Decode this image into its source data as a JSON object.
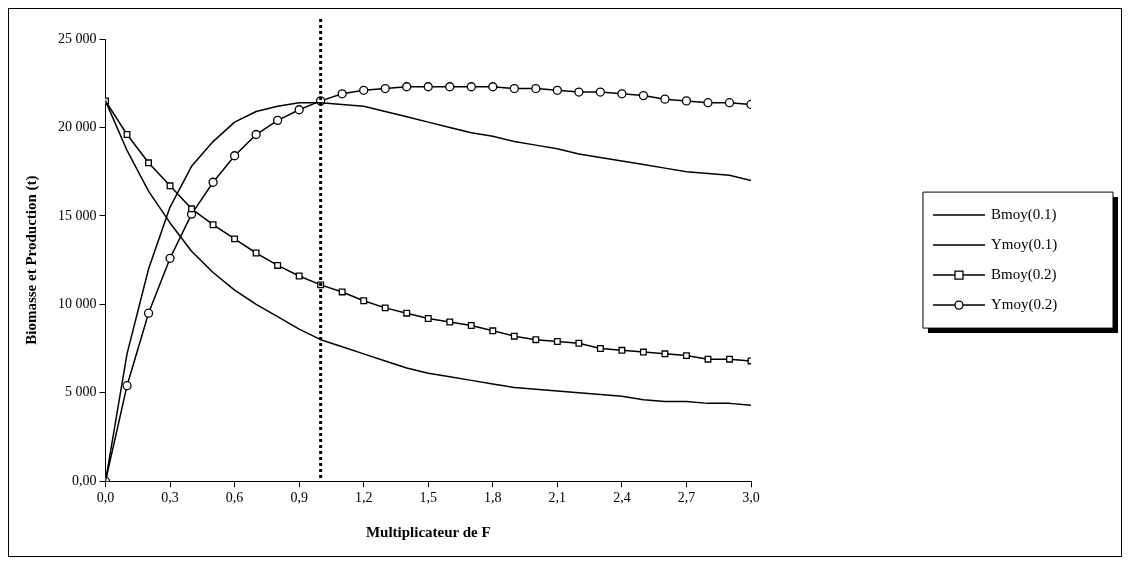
{
  "chart_data": {
    "type": "line",
    "xlabel": "Multiplicateur de F",
    "ylabel": "Biomasse et Production (t)",
    "x": [
      0,
      0.1,
      0.2,
      0.3,
      0.4,
      0.5,
      0.6,
      0.7,
      0.8,
      0.9,
      1.0,
      1.1,
      1.2,
      1.3,
      1.4,
      1.5,
      1.6,
      1.7,
      1.8,
      1.9,
      2.0,
      2.1,
      2.2,
      2.3,
      2.4,
      2.5,
      2.6,
      2.7,
      2.8,
      2.9,
      3.0
    ],
    "xlim": [
      0,
      3
    ],
    "xticks": [
      {
        "value": 0,
        "label": "0,0"
      },
      {
        "value": 0.3,
        "label": "0,3"
      },
      {
        "value": 0.6,
        "label": "0,6"
      },
      {
        "value": 0.9,
        "label": "0,9"
      },
      {
        "value": 1.2,
        "label": "1,2"
      },
      {
        "value": 1.5,
        "label": "1,5"
      },
      {
        "value": 1.8,
        "label": "1,8"
      },
      {
        "value": 2.1,
        "label": "2,1"
      },
      {
        "value": 2.4,
        "label": "2,4"
      },
      {
        "value": 2.7,
        "label": "2,7"
      },
      {
        "value": 3.0,
        "label": "3,0"
      }
    ],
    "ylim": [
      0,
      25000
    ],
    "yticks": [
      {
        "value": 0,
        "label": "0,00"
      },
      {
        "value": 5000,
        "label": "5 000"
      },
      {
        "value": 10000,
        "label": "10 000"
      },
      {
        "value": 15000,
        "label": "15 000"
      },
      {
        "value": 20000,
        "label": "20 000"
      },
      {
        "value": 25000,
        "label": "25 000"
      }
    ],
    "series": [
      {
        "name": "Bmoy(0.1)",
        "color": "#000000",
        "marker": "none",
        "values": [
          21500,
          18700,
          16400,
          14600,
          13000,
          11800,
          10800,
          10000,
          9300,
          8600,
          8000,
          7600,
          7200,
          6800,
          6400,
          6100,
          5900,
          5700,
          5500,
          5300,
          5200,
          5100,
          5000,
          4900,
          4800,
          4600,
          4500,
          4500,
          4400,
          4400,
          4300
        ]
      },
      {
        "name": "Ymoy(0.1)",
        "color": "#000000",
        "marker": "none",
        "values": [
          0,
          7200,
          12000,
          15500,
          17800,
          19200,
          20300,
          20900,
          21200,
          21400,
          21400,
          21300,
          21200,
          20900,
          20600,
          20300,
          20000,
          19700,
          19500,
          19200,
          19000,
          18800,
          18500,
          18300,
          18100,
          17900,
          17700,
          17500,
          17400,
          17300,
          17000
        ]
      },
      {
        "name": "Bmoy(0.2)",
        "color": "#000000",
        "marker": "square",
        "values": [
          21500,
          19600,
          18000,
          16700,
          15400,
          14500,
          13700,
          12900,
          12200,
          11600,
          11100,
          10700,
          10200,
          9800,
          9500,
          9200,
          9000,
          8800,
          8500,
          8200,
          8000,
          7900,
          7800,
          7500,
          7400,
          7300,
          7200,
          7100,
          6900,
          6900,
          6800
        ]
      },
      {
        "name": "Ymoy(0.2)",
        "color": "#000000",
        "marker": "circle",
        "values": [
          0,
          5400,
          9500,
          12600,
          15100,
          16900,
          18400,
          19600,
          20400,
          21000,
          21500,
          21900,
          22100,
          22200,
          22300,
          22300,
          22300,
          22300,
          22300,
          22200,
          22200,
          22100,
          22000,
          22000,
          21900,
          21800,
          21600,
          21500,
          21400,
          21400,
          21300
        ]
      }
    ],
    "ref_lines": [
      {
        "axis": "x",
        "value": 1.0,
        "color": "#000000",
        "line_style": "dotted"
      }
    ],
    "legend": "right",
    "grid": false,
    "line_style": "solid"
  }
}
